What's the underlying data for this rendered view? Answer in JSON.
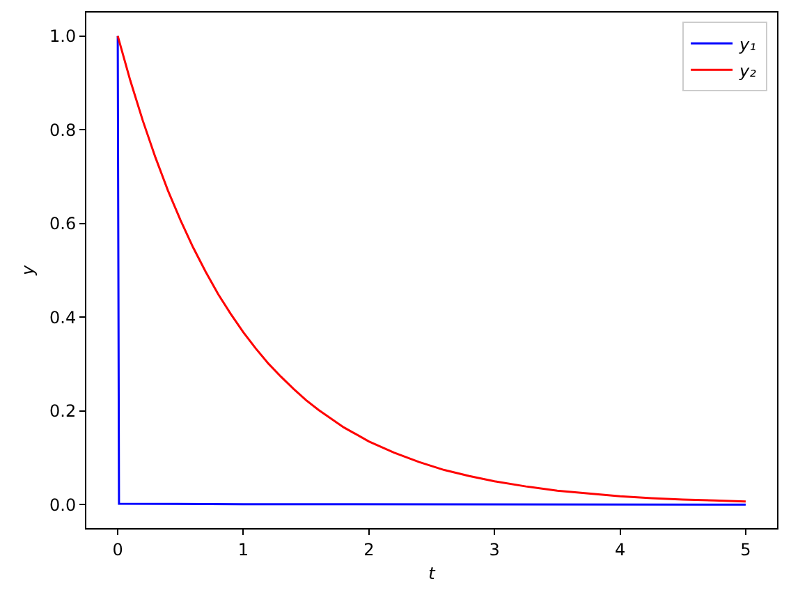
{
  "chart_data": {
    "type": "line",
    "xlabel": "t",
    "ylabel": "y",
    "xlim": [
      -0.25,
      5.25
    ],
    "xticks": [
      0,
      1,
      2,
      3,
      4,
      5
    ],
    "ylim": [
      -0.05,
      1.05
    ],
    "yticks": [
      {
        "value": 0,
        "label": "0.0"
      },
      0.2,
      0.4,
      0.6,
      0.8,
      {
        "value": 1,
        "label": "1.0"
      }
    ],
    "series": [
      {
        "name": "y₁",
        "color": "#0000ff",
        "x": [
          0,
          0.01,
          1,
          5
        ],
        "values": [
          1.0,
          0.002,
          0.001,
          0.0
        ]
      },
      {
        "name": "y₂",
        "color": "#ff0000",
        "x": [
          0,
          0.1,
          0.2,
          0.3,
          0.4,
          0.5,
          0.6,
          0.7,
          0.8,
          0.9,
          1,
          1.1,
          1.2,
          1.3,
          1.4,
          1.5,
          1.6,
          1.8,
          2,
          2.2,
          2.4,
          2.6,
          2.8,
          3,
          3.25,
          3.5,
          3.75,
          4,
          4.25,
          4.5,
          4.75,
          5
        ],
        "values": [
          1.0,
          0.905,
          0.819,
          0.741,
          0.67,
          0.607,
          0.549,
          0.497,
          0.449,
          0.407,
          0.368,
          0.333,
          0.301,
          0.273,
          0.247,
          0.223,
          0.202,
          0.165,
          0.135,
          0.111,
          0.091,
          0.074,
          0.061,
          0.05,
          0.039,
          0.03,
          0.024,
          0.018,
          0.014,
          0.011,
          0.009,
          0.007
        ]
      }
    ],
    "grid": false,
    "legend": "top right",
    "marker": "none",
    "line_style": "solid"
  }
}
